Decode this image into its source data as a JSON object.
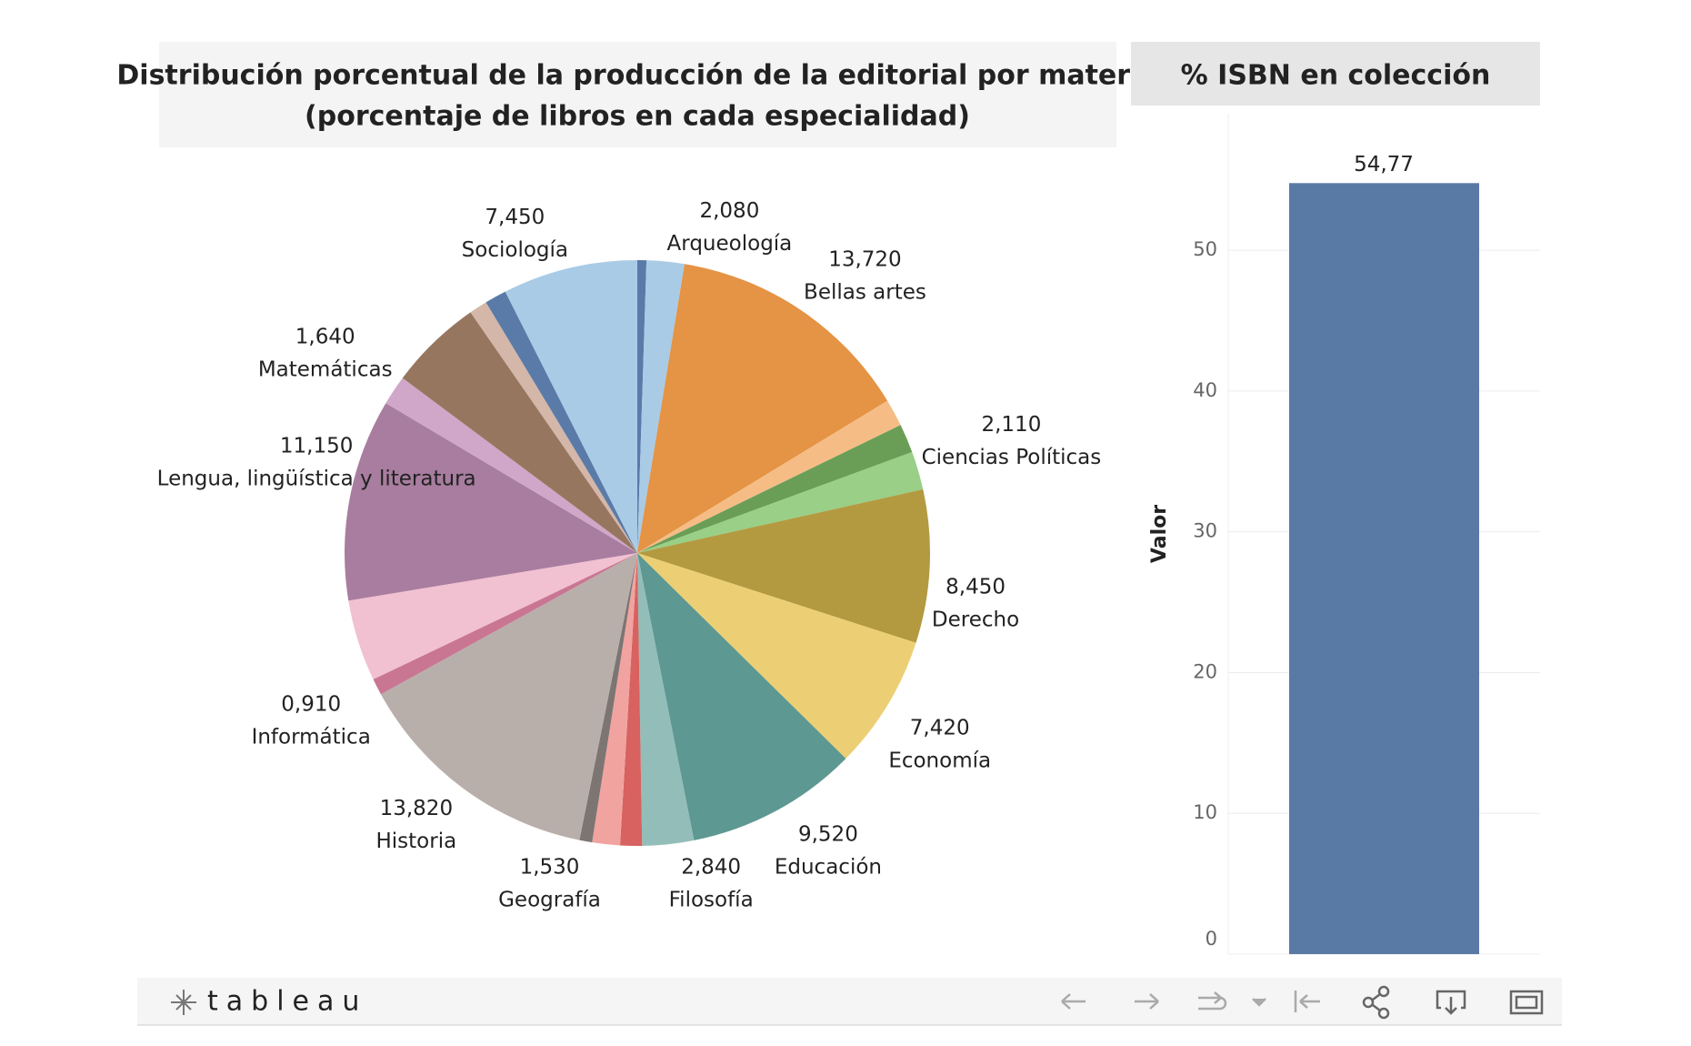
{
  "chart_data": [
    {
      "type": "pie",
      "title": "Distribución porcentual de la producción de la editorial por materia",
      "subtitle": "(porcentaje de libros en cada especialidad)",
      "categories": [
        null,
        "Arqueología",
        "Bellas artes",
        null,
        null,
        "Ciencias Políticas",
        "Derecho",
        "Economía",
        "Educación",
        "Filosofía",
        null,
        "Geografía",
        null,
        "Historia",
        "Informática",
        null,
        "Lengua, lingüística y literatura",
        "Matemáticas",
        null,
        null,
        null,
        "Sociología"
      ],
      "values": [
        0.5,
        2.08,
        13.72,
        1.5,
        1.6,
        2.11,
        8.45,
        7.42,
        9.52,
        2.84,
        1.2,
        1.53,
        0.7,
        13.82,
        0.91,
        4.5,
        11.15,
        1.64,
        5.16,
        1.0,
        1.2,
        7.45
      ],
      "value_labels": [
        null,
        "2,080",
        "13,720",
        null,
        null,
        "2,110",
        "8,450",
        "7,420",
        "9,520",
        "2,840",
        null,
        "1,530",
        null,
        "13,820",
        "0,910",
        null,
        "11,150",
        "1,640",
        null,
        null,
        null,
        "7,450"
      ],
      "colors": [
        "#5a7ba8",
        "#a9cbe6",
        "#e59344",
        "#f5bd85",
        "#6a9e57",
        "#99cf86",
        "#b39a40",
        "#eccf74",
        "#5d9892",
        "#93bdb8",
        "#d7625f",
        "#f1a3a0",
        "#7d7572",
        "#b8afab",
        "#c97693",
        "#f1c0d1",
        "#a87d9f",
        "#d0a7c8",
        "#97765f",
        "#d4b7a9",
        "#5a7ba8",
        "#a9cbe6"
      ]
    },
    {
      "type": "bar",
      "title": "% ISBN en colección",
      "y_label": "Valor",
      "values": [
        54.77
      ],
      "value_labels": [
        "54,77"
      ],
      "color": "#5a7aa6",
      "ylim": [
        0,
        59.7
      ],
      "yticks": [
        0,
        10,
        20,
        30,
        40,
        50
      ],
      "grid": true
    }
  ],
  "toolbar": {
    "brand": "tableau"
  }
}
